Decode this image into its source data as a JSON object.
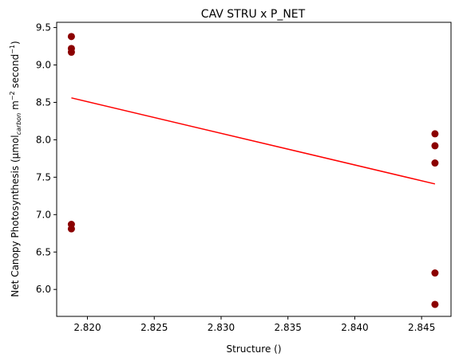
{
  "chart_data": {
    "type": "scatter",
    "title": "CAV STRU x P_NET",
    "xlabel": "Structure ()",
    "ylabel": {
      "prefix": "Net Canopy Photosynthesis (µmol",
      "subscript": "carbon",
      "mid": " m",
      "sup1": "−2",
      "mid2": " second",
      "sup2": "−1",
      "suffix": ")"
    },
    "xlim": [
      2.8177,
      2.8472
    ],
    "ylim": [
      5.64,
      9.57
    ],
    "x_ticks": [
      "2.820",
      "2.825",
      "2.830",
      "2.835",
      "2.840",
      "2.845"
    ],
    "y_ticks": [
      "6.0",
      "6.5",
      "7.0",
      "7.5",
      "8.0",
      "8.5",
      "9.0",
      "9.5"
    ],
    "grid": false,
    "legend": "none",
    "colors": {
      "points": "#8b0000",
      "fit_line": "#ff0000"
    },
    "points": [
      {
        "x": 2.8188,
        "y": 9.38
      },
      {
        "x": 2.8188,
        "y": 9.22
      },
      {
        "x": 2.8188,
        "y": 9.17
      },
      {
        "x": 2.8188,
        "y": 6.87
      },
      {
        "x": 2.8188,
        "y": 6.81
      },
      {
        "x": 2.846,
        "y": 8.08
      },
      {
        "x": 2.846,
        "y": 7.92
      },
      {
        "x": 2.846,
        "y": 7.69
      },
      {
        "x": 2.846,
        "y": 6.22
      },
      {
        "x": 2.846,
        "y": 5.8
      }
    ],
    "fit_line": [
      {
        "x": 2.8188,
        "y": 8.56
      },
      {
        "x": 2.846,
        "y": 7.41
      }
    ]
  }
}
